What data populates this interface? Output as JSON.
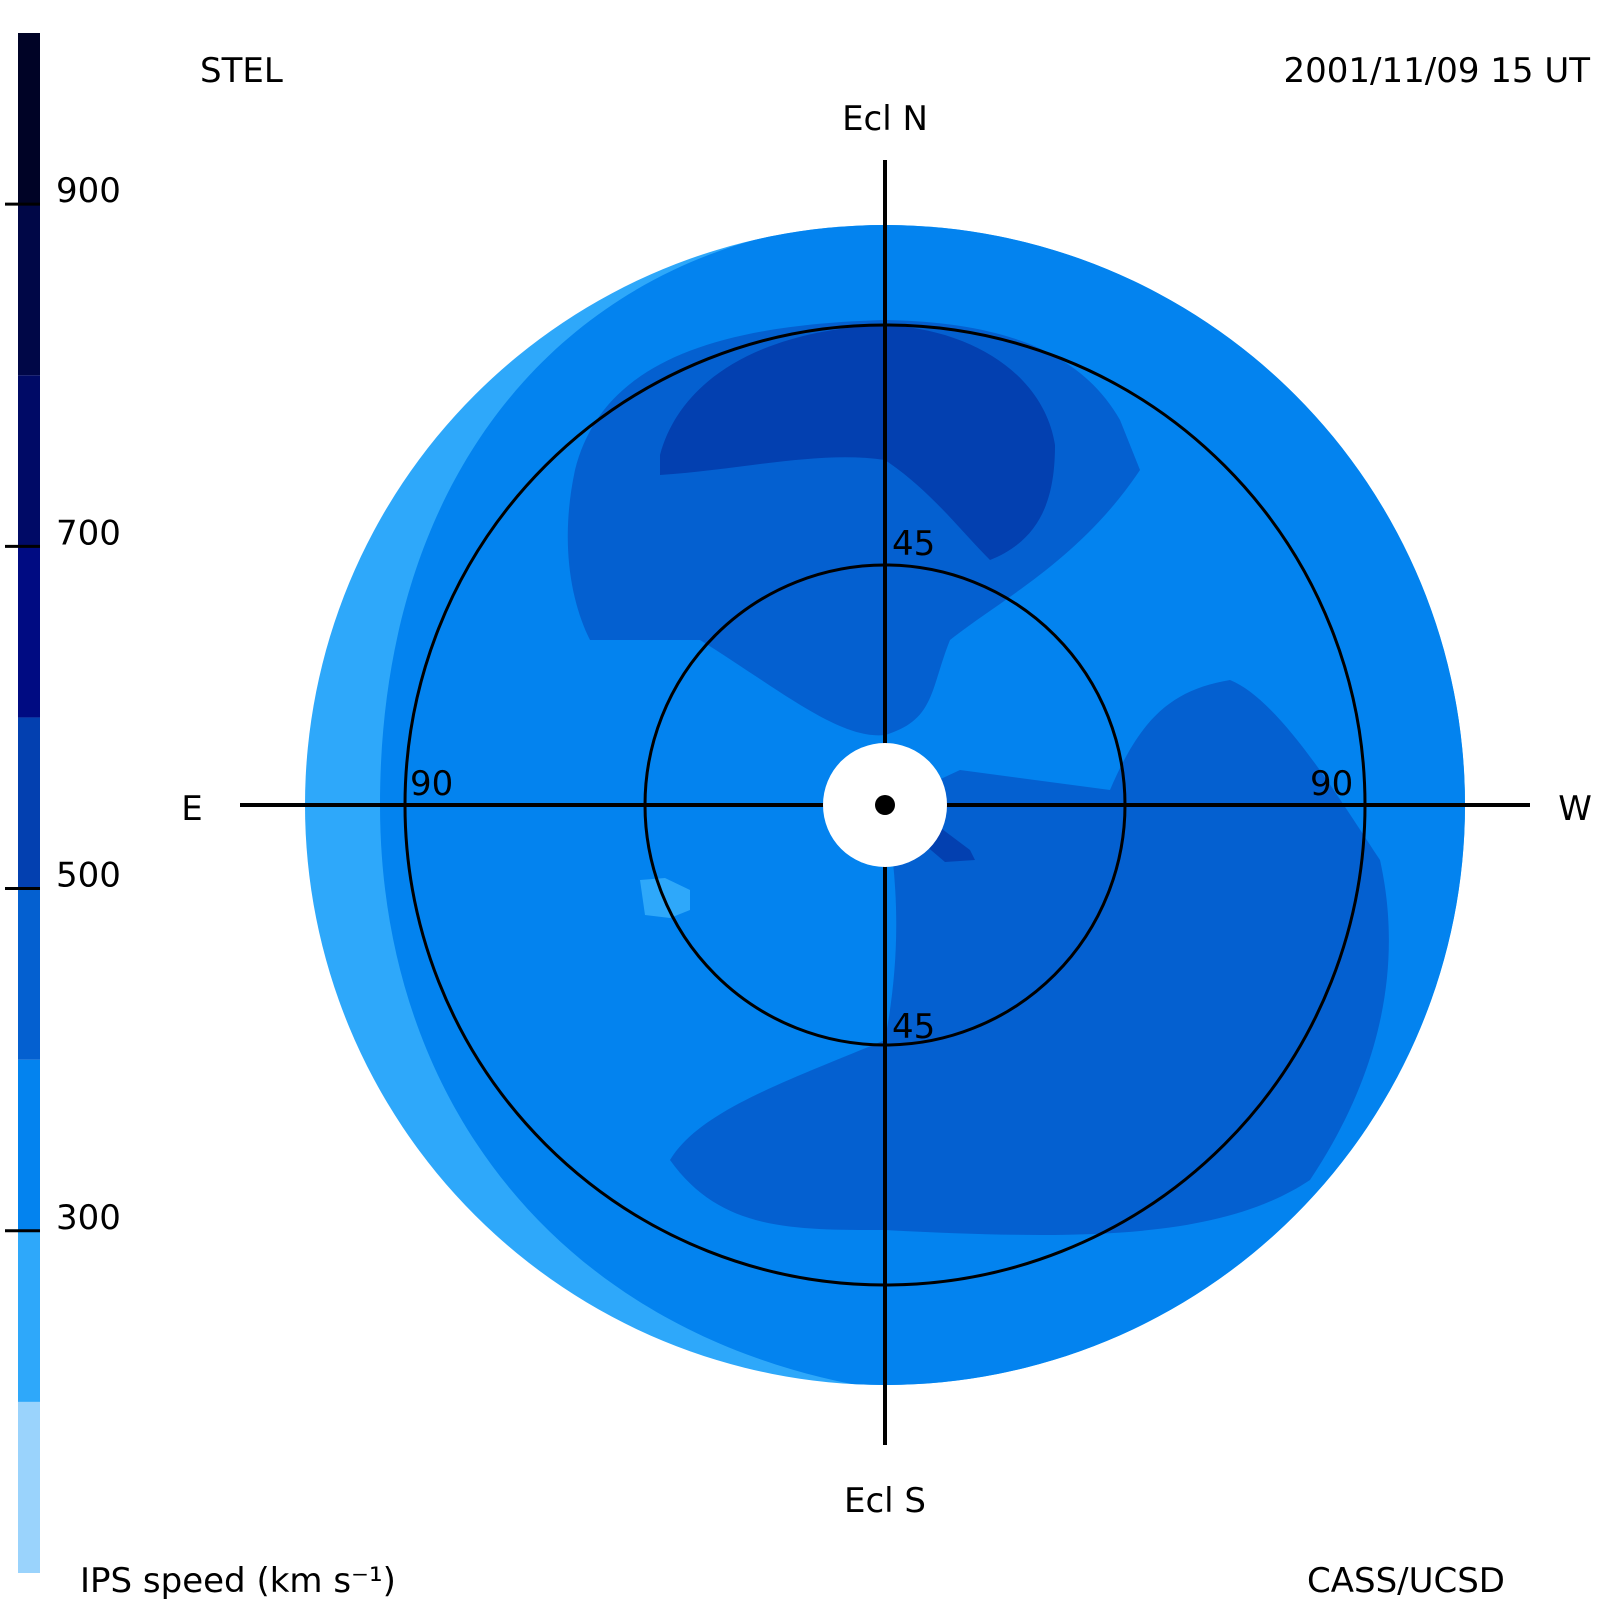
{
  "header": {
    "observatory": "STEL",
    "datetime": "2001/11/09 15 UT",
    "credit": "CASS/UCSD"
  },
  "compass": {
    "north": "Ecl N",
    "south": "Ecl S",
    "east": "E",
    "west": "W"
  },
  "chart_data": {
    "type": "heatmap",
    "projection": "fisheye-sky-map",
    "quantity": "IPS speed",
    "colorbar": {
      "label": "IPS speed (km s⁻¹)",
      "ticks": [
        "300",
        "500",
        "700",
        "900"
      ],
      "tick_values": [
        300,
        500,
        700,
        900
      ],
      "range": [
        100,
        1000
      ],
      "levels": [
        {
          "min": 100,
          "max": 200,
          "color": "#9ad3fc"
        },
        {
          "min": 200,
          "max": 300,
          "color": "#2ea8fa"
        },
        {
          "min": 300,
          "max": 400,
          "color": "#0383ef"
        },
        {
          "min": 400,
          "max": 500,
          "color": "#0460d0"
        },
        {
          "min": 500,
          "max": 600,
          "color": "#0340b0"
        },
        {
          "min": 600,
          "max": 700,
          "color": "#000b82"
        },
        {
          "min": 700,
          "max": 800,
          "color": "#000a66"
        },
        {
          "min": 800,
          "max": 900,
          "color": "#000747"
        },
        {
          "min": 900,
          "max": 1000,
          "color": "#000326"
        }
      ]
    },
    "elongation_rings": [
      {
        "deg": 45,
        "labels": [
          "45",
          "45"
        ]
      },
      {
        "deg": 90,
        "labels": [
          "90",
          "90"
        ]
      }
    ],
    "max_elongation_deg": 120,
    "colors": {
      "background_slow": "#2ea8fa",
      "medium": "#0383ef",
      "fast": "#0460d0",
      "fastest": "#0340b0"
    }
  }
}
